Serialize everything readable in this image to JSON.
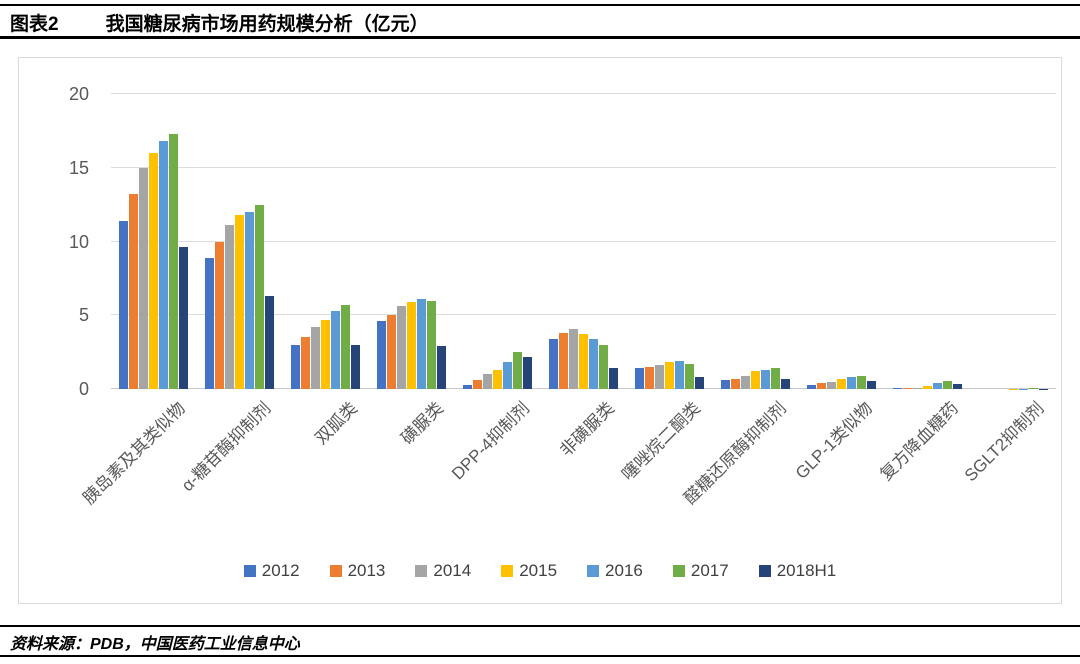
{
  "header": {
    "label": "图表2",
    "title": "我国糖尿病市场用药规模分析（亿元）"
  },
  "footer": {
    "source": "资料来源：PDB，中国医药工业信息中心"
  },
  "chart_data": {
    "type": "bar",
    "title": "我国糖尿病市场用药规模分析（亿元）",
    "unit": "亿元",
    "categories": [
      "胰岛素及其类似物",
      "α-糖苷酶抑制剂",
      "双胍类",
      "磺脲类",
      "DPP-4抑制剂",
      "非磺脲类",
      "噻唑烷二酮类",
      "醛糖还原酶抑制剂",
      "GLP-1类似物",
      "复方降血糖药",
      "SGLT2抑制剂"
    ],
    "series": [
      {
        "name": "2012",
        "color": "#4472C4",
        "values": [
          11.4,
          8.9,
          3.0,
          4.6,
          0.3,
          3.4,
          1.4,
          0.6,
          0.3,
          0.05,
          0
        ]
      },
      {
        "name": "2013",
        "color": "#ED7D31",
        "values": [
          13.2,
          10.0,
          3.5,
          5.0,
          0.6,
          3.8,
          1.5,
          0.7,
          0.4,
          0.1,
          0
        ]
      },
      {
        "name": "2014",
        "color": "#A5A5A5",
        "values": [
          15.0,
          11.1,
          4.2,
          5.6,
          1.0,
          4.1,
          1.6,
          0.9,
          0.5,
          0.1,
          0
        ]
      },
      {
        "name": "2015",
        "color": "#FFC000",
        "values": [
          16.0,
          11.8,
          4.7,
          5.9,
          1.3,
          3.7,
          1.8,
          1.2,
          0.7,
          0.2,
          0.02
        ]
      },
      {
        "name": "2016",
        "color": "#5B9BD5",
        "values": [
          16.8,
          12.0,
          5.3,
          6.1,
          1.8,
          3.4,
          1.9,
          1.3,
          0.85,
          0.4,
          0.03
        ]
      },
      {
        "name": "2017",
        "color": "#70AD47",
        "values": [
          17.3,
          12.5,
          5.7,
          6.0,
          2.5,
          3.0,
          1.7,
          1.4,
          0.9,
          0.55,
          0.05
        ]
      },
      {
        "name": "2018H1",
        "color": "#264478",
        "values": [
          9.6,
          6.3,
          3.0,
          2.9,
          2.2,
          1.4,
          0.8,
          0.7,
          0.55,
          0.35,
          0.03
        ]
      }
    ],
    "ylabel": "",
    "xlabel": "",
    "ylim": [
      0,
      20
    ],
    "yticks": [
      0,
      5,
      10,
      15,
      20
    ],
    "grid": true,
    "legend_position": "bottom"
  }
}
